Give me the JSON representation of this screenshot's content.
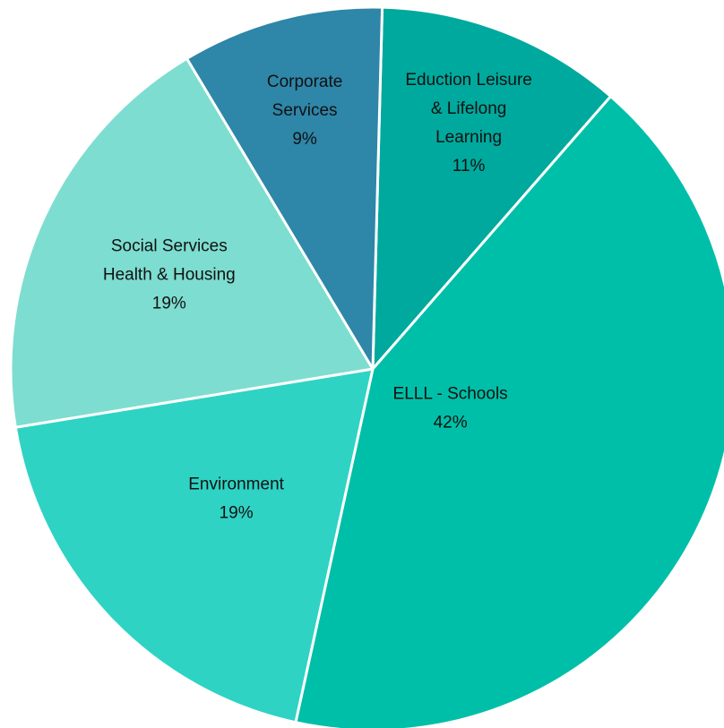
{
  "chart_data": {
    "type": "pie",
    "slices": [
      {
        "label_lines": [
          "Eduction Leisure",
          "& Lifelong",
          "Learning"
        ],
        "percent_label": "11%",
        "value": 11,
        "color": "#00A99D"
      },
      {
        "label_lines": [
          "ELLL - Schools"
        ],
        "percent_label": "42%",
        "value": 42,
        "color": "#00BFA8"
      },
      {
        "label_lines": [
          "Environment"
        ],
        "percent_label": "19%",
        "value": 19,
        "color": "#2ED3C4"
      },
      {
        "label_lines": [
          "Social Services",
          "Health & Housing"
        ],
        "percent_label": "19%",
        "value": 19,
        "color": "#7DDDD0"
      },
      {
        "label_lines": [
          "Corporate",
          "Services"
        ],
        "percent_label": "9%",
        "value": 9,
        "color": "#2E86A8"
      }
    ],
    "start_angle_degrees_clockwise_from_top": 1.5,
    "slice_border_color": "#ffffff"
  }
}
